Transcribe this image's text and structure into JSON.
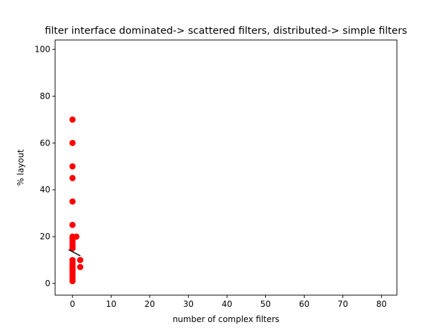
{
  "chart_data": {
    "type": "scatter",
    "title": "filter interface dominated-> scattered filters, distributed-> simple filters",
    "xlabel": "number of complex filters",
    "ylabel": "% layout",
    "xlim": [
      -4.5,
      84
    ],
    "ylim": [
      -5,
      104
    ],
    "xticks": [
      0,
      10,
      20,
      30,
      40,
      50,
      60,
      70,
      80
    ],
    "yticks": [
      0,
      20,
      40,
      60,
      80,
      100
    ],
    "grid": false,
    "series": [
      {
        "marker_color": "#ff0000",
        "points": [
          {
            "x": 0,
            "y": 70
          },
          {
            "x": 0,
            "y": 60
          },
          {
            "x": 0,
            "y": 50
          },
          {
            "x": 0,
            "y": 45
          },
          {
            "x": 0,
            "y": 35
          },
          {
            "x": 0,
            "y": 25
          },
          {
            "x": 0,
            "y": 20
          },
          {
            "x": 1,
            "y": 20
          },
          {
            "x": 0,
            "y": 19
          },
          {
            "x": 0,
            "y": 18
          },
          {
            "x": 0,
            "y": 17
          },
          {
            "x": 0,
            "y": 16
          },
          {
            "x": 0,
            "y": 15
          },
          {
            "x": 0,
            "y": 10
          },
          {
            "x": 0,
            "y": 9
          },
          {
            "x": 0,
            "y": 8
          },
          {
            "x": 0,
            "y": 7
          },
          {
            "x": 0,
            "y": 6
          },
          {
            "x": 0,
            "y": 5
          },
          {
            "x": 0,
            "y": 4
          },
          {
            "x": 0,
            "y": 3
          },
          {
            "x": 0,
            "y": 2
          },
          {
            "x": 0,
            "y": 1
          },
          {
            "x": 2,
            "y": 10
          },
          {
            "x": 2,
            "y": 7
          }
        ]
      }
    ],
    "trend_line": {
      "color": "#000000",
      "x": [
        -1,
        2
      ],
      "y": [
        14.4,
        11.8
      ]
    }
  }
}
